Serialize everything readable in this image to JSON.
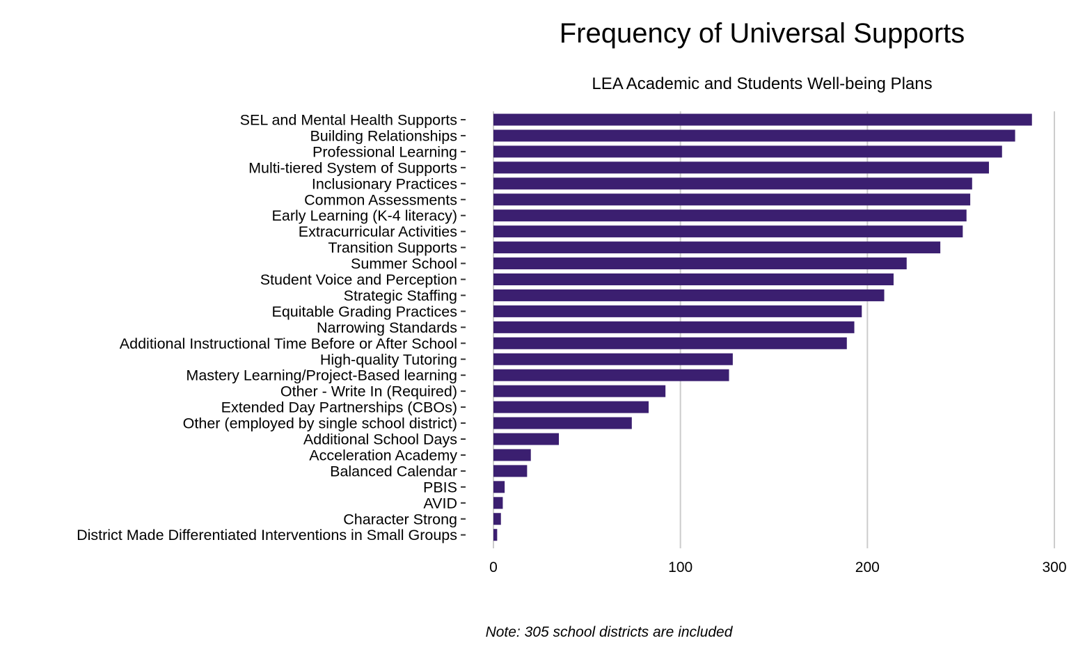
{
  "chart_data": {
    "type": "bar",
    "orientation": "horizontal",
    "title": "Frequency of Universal Supports",
    "subtitle": "LEA Academic and Students Well-being Plans",
    "note": "Note: 305 school districts are included",
    "xlabel": "",
    "ylabel": "",
    "xlim": [
      0,
      300
    ],
    "xticks": [
      0,
      100,
      200,
      300
    ],
    "grid": "vertical",
    "bar_color": "#3b1f70",
    "grid_color": "#cccccc",
    "categories": [
      "SEL and Mental Health Supports",
      "Building Relationships",
      "Professional Learning",
      "Multi-tiered System of Supports",
      "Inclusionary Practices",
      "Common Assessments",
      "Early Learning (K-4 literacy)",
      "Extracurricular Activities",
      "Transition Supports",
      "Summer School",
      "Student Voice and Perception",
      "Strategic Staffing",
      "Equitable Grading Practices",
      "Narrowing Standards",
      "Additional Instructional Time Before or After School",
      "High-quality Tutoring",
      "Mastery Learning/Project-Based learning",
      "Other - Write In (Required)",
      "Extended Day Partnerships (CBOs)",
      "Other (employed by single school district)",
      "Additional School Days",
      "Acceleration Academy",
      "Balanced Calendar",
      "PBIS",
      "AVID",
      "Character Strong",
      "District Made Differentiated Interventions in Small Groups"
    ],
    "values": [
      288,
      279,
      272,
      265,
      256,
      255,
      253,
      251,
      239,
      221,
      214,
      209,
      197,
      193,
      189,
      128,
      126,
      92,
      83,
      74,
      35,
      20,
      18,
      6,
      5,
      4,
      2
    ]
  }
}
